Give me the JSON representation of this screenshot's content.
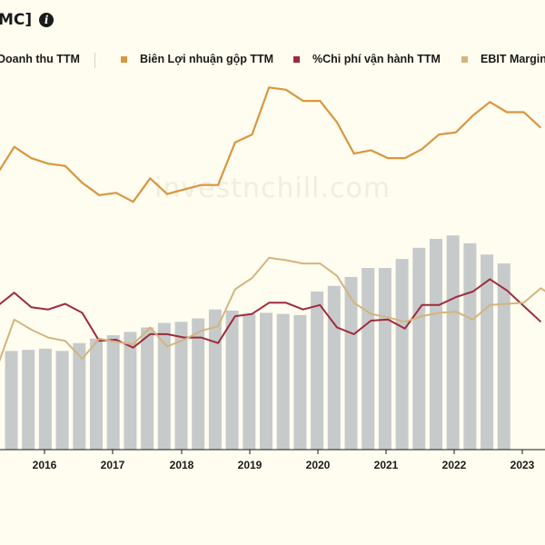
{
  "header": {
    "title": "MC]",
    "info_icon": "info-icon"
  },
  "watermark": "investnchill.com",
  "legend": [
    {
      "label": "Doanh thu TTM",
      "color": "#c6cacb",
      "shape": "none"
    },
    {
      "label": "Biên Lợi nhuận gộp TTM",
      "color": "#d9963f",
      "shape": "square"
    },
    {
      "label": "%Chi phí vận hành TTM",
      "color": "#9e2b3c",
      "shape": "square"
    },
    {
      "label": "EBIT Margin",
      "color": "#d4b47e",
      "shape": "square"
    }
  ],
  "chart_data": {
    "type": "bar+line",
    "x_ticks": [
      "2016",
      "2017",
      "2018",
      "2019",
      "2020",
      "2021",
      "2022",
      "2023"
    ],
    "revenue_bars": [
      44,
      44.5,
      45,
      44,
      47.5,
      49.5,
      51,
      52.5,
      54.5,
      56.5,
      57,
      58.5,
      62.5,
      62,
      60.5,
      61,
      60.5,
      60,
      70.5,
      73,
      77,
      81,
      81,
      85,
      90,
      94,
      95.5,
      92,
      87,
      83
    ],
    "series": [
      {
        "name": "Biên Lợi nhuận gộp TTM",
        "color": "#d9963f",
        "values": [
          123,
          135,
          130,
          127.5,
          126.5,
          119,
          113.5,
          114.5,
          110.5,
          121,
          114,
          116,
          118,
          118,
          137,
          140.5,
          161.5,
          160.5,
          155.5,
          155.5,
          146,
          132,
          133.5,
          130,
          130,
          134,
          140.5,
          141.5,
          149,
          155,
          150.5,
          150.5,
          143.5
        ]
      },
      {
        "name": "%Chi phí vận hành TTM",
        "color": "#9e2b3c",
        "values": [
          64,
          70,
          63.5,
          62.5,
          65,
          61,
          48.5,
          49,
          45.5,
          51.5,
          51.5,
          50,
          50,
          47.5,
          59.5,
          60.5,
          65.5,
          65.5,
          62.5,
          64.5,
          54.5,
          51.5,
          57.5,
          58,
          54,
          64.5,
          64.5,
          68,
          70.5,
          76,
          71,
          64,
          57
        ]
      },
      {
        "name": "EBIT Margin",
        "color": "#d4b47e",
        "values": [
          37,
          58,
          53.5,
          50,
          48.5,
          40.5,
          49.5,
          48,
          47,
          54.5,
          46,
          49,
          53,
          55,
          71.5,
          76.5,
          85.5,
          84.5,
          83,
          83,
          77.5,
          65.5,
          60.5,
          59,
          57,
          59.5,
          61,
          61.5,
          58,
          64.5,
          65,
          65.5,
          72,
          67,
          72
        ]
      }
    ],
    "ylim": [
      0,
      170
    ]
  }
}
